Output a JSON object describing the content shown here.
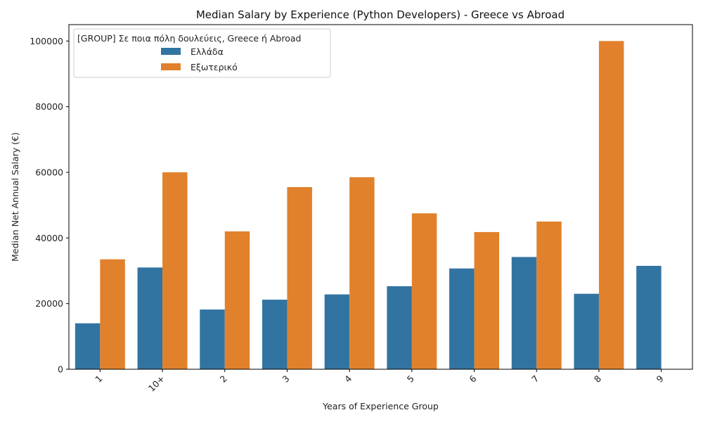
{
  "chart_data": {
    "type": "bar",
    "title": "Median Salary by Experience (Python Developers) - Greece vs Abroad",
    "xlabel": "Years of Experience Group",
    "ylabel": "Median Net Annual Salary (€)",
    "categories": [
      "1",
      "10+",
      "2",
      "3",
      "4",
      "5",
      "6",
      "7",
      "8",
      "9"
    ],
    "series": [
      {
        "name": "Ελλάδα",
        "color": "#3274a1",
        "values": [
          14000,
          31000,
          18200,
          21200,
          22800,
          25300,
          30700,
          34200,
          23000,
          31500
        ]
      },
      {
        "name": "Εξωτερικό",
        "color": "#e1812c",
        "values": [
          33500,
          60000,
          42000,
          55500,
          58500,
          47500,
          41800,
          45000,
          100000,
          0
        ]
      }
    ],
    "ylim": [
      0,
      105000
    ],
    "yticks": [
      0,
      20000,
      40000,
      60000,
      80000,
      100000
    ],
    "legend": {
      "title": "[GROUP] Σε ποια πόλη δουλεύεις, Greece ή Abroad",
      "position": "top-left"
    },
    "grid": false
  }
}
